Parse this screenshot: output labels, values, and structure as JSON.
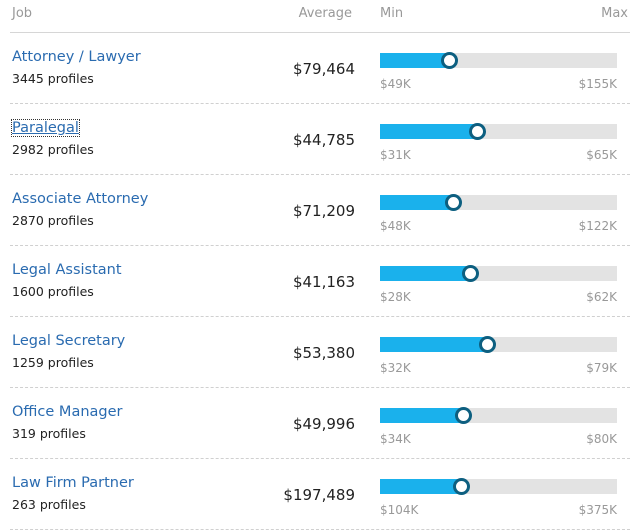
{
  "header": {
    "job": "Job",
    "average": "Average",
    "min": "Min",
    "max": "Max"
  },
  "colors": {
    "fill": "#1ab1ec",
    "marker": "#0d5f80",
    "link": "#2a6bb0"
  },
  "rows": [
    {
      "title": "Attorney / Lawyer",
      "profiles": "3445 profiles",
      "average": "$79,464",
      "min": "$49K",
      "max": "$155K",
      "level": 0.29
    },
    {
      "title": "Paralegal",
      "profiles": "2982 profiles",
      "average": "$44,785",
      "min": "$31K",
      "max": "$65K",
      "level": 0.41,
      "focused": true
    },
    {
      "title": "Associate Attorney",
      "profiles": "2870 profiles",
      "average": "$71,209",
      "min": "$48K",
      "max": "$122K",
      "level": 0.31
    },
    {
      "title": "Legal Assistant",
      "profiles": "1600 profiles",
      "average": "$41,163",
      "min": "$28K",
      "max": "$62K",
      "level": 0.38
    },
    {
      "title": "Legal Secretary",
      "profiles": "1259 profiles",
      "average": "$53,380",
      "min": "$32K",
      "max": "$79K",
      "level": 0.45
    },
    {
      "title": "Office Manager",
      "profiles": "319 profiles",
      "average": "$49,996",
      "min": "$34K",
      "max": "$80K",
      "level": 0.35
    },
    {
      "title": "Law Firm Partner",
      "profiles": "263 profiles",
      "average": "$197,489",
      "min": "$104K",
      "max": "$375K",
      "level": 0.34
    }
  ]
}
